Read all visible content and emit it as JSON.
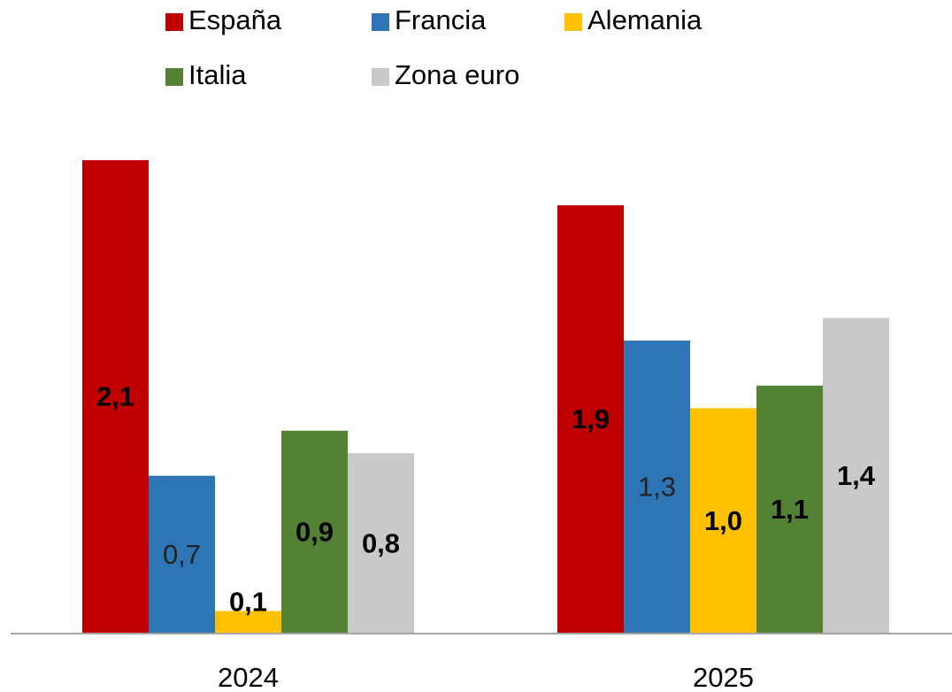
{
  "chart_data": {
    "type": "bar",
    "categories": [
      "2024",
      "2025"
    ],
    "series": [
      {
        "name": "España",
        "color": "#c00000",
        "values": [
          2.1,
          1.9
        ],
        "value_labels": [
          "2,1",
          "1,9"
        ]
      },
      {
        "name": "Francia",
        "color": "#2e75b6",
        "values": [
          0.7,
          1.3
        ],
        "value_labels": [
          "0,7",
          "1,3"
        ]
      },
      {
        "name": "Alemania",
        "color": "#ffc000",
        "values": [
          0.1,
          1.0
        ],
        "value_labels": [
          "0,1",
          "1,0"
        ]
      },
      {
        "name": "Italia",
        "color": "#548235",
        "values": [
          0.9,
          1.1
        ],
        "value_labels": [
          "0,9",
          "1,1"
        ]
      },
      {
        "name": "Zona euro",
        "color": "#c9c9c9",
        "values": [
          0.8,
          1.4
        ],
        "value_labels": [
          "0,8",
          "1,4"
        ]
      }
    ],
    "ylim": [
      0,
      2.1
    ]
  }
}
